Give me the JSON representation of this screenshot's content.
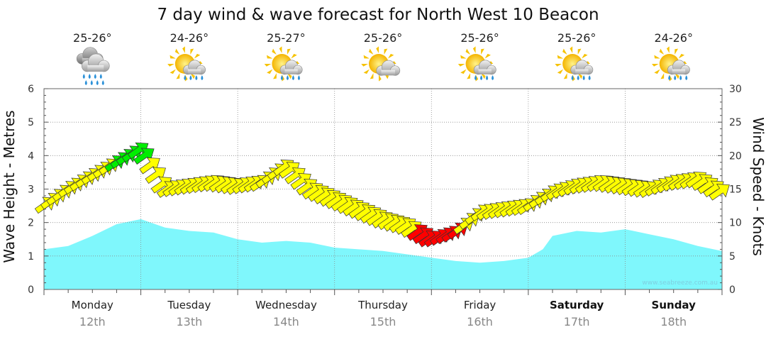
{
  "chart_data": {
    "type": "area",
    "title": "7 day wind & wave forecast for North West 10 Beacon",
    "ylabel_left": "Wave Height - Metres",
    "ylabel_right": "Wind Speed - Knots",
    "ylim_left": [
      0,
      6
    ],
    "ylim_right": [
      0,
      30
    ],
    "yticks_left": [
      "0",
      "1",
      "2",
      "3",
      "4",
      "5",
      "6"
    ],
    "yticks_right": [
      "0",
      "5",
      "10",
      "15",
      "20",
      "25",
      "30"
    ],
    "x_range_days": [
      0,
      7
    ],
    "grid": true,
    "watermark": "www.seabreeze.com.au",
    "days": [
      {
        "label": "Monday",
        "date": "12th",
        "bold": false,
        "temp": "25-26°",
        "weather_icon": "rain-cloud-icon"
      },
      {
        "label": "Tuesday",
        "date": "13th",
        "bold": false,
        "temp": "24-26°",
        "weather_icon": "sun-cloud-rain-icon"
      },
      {
        "label": "Wednesday",
        "date": "14th",
        "bold": false,
        "temp": "25-27°",
        "weather_icon": "sun-cloud-rain-icon"
      },
      {
        "label": "Thursday",
        "date": "15th",
        "bold": false,
        "temp": "25-26°",
        "weather_icon": "sun-cloud-icon"
      },
      {
        "label": "Friday",
        "date": "16th",
        "bold": false,
        "temp": "25-26°",
        "weather_icon": "sun-cloud-rain-icon"
      },
      {
        "label": "Saturday",
        "date": "17th",
        "bold": true,
        "temp": "25-26°",
        "weather_icon": "sun-cloud-rain-icon"
      },
      {
        "label": "Sunday",
        "date": "18th",
        "bold": true,
        "temp": "24-26°",
        "weather_icon": "sun-cloud-rain-icon"
      }
    ],
    "wave_height": {
      "name": "Wave Height",
      "x": [
        0,
        0.25,
        0.5,
        0.75,
        1.0,
        1.25,
        1.5,
        1.75,
        2.0,
        2.25,
        2.5,
        2.75,
        3.0,
        3.5,
        4.0,
        4.25,
        4.5,
        4.75,
        5.0,
        5.15,
        5.25,
        5.5,
        5.75,
        6.0,
        6.25,
        6.5,
        6.75,
        7.0
      ],
      "values": [
        1.2,
        1.3,
        1.6,
        1.95,
        2.1,
        1.85,
        1.75,
        1.7,
        1.5,
        1.4,
        1.45,
        1.4,
        1.25,
        1.15,
        0.95,
        0.85,
        0.8,
        0.85,
        0.95,
        1.2,
        1.6,
        1.75,
        1.7,
        1.8,
        1.65,
        1.5,
        1.3,
        1.15
      ],
      "color": "#7ff7fc"
    },
    "wind_speed": {
      "name": "Wind Speed",
      "x": [
        0,
        0.25,
        0.5,
        0.75,
        1.0,
        1.25,
        1.5,
        1.75,
        2.0,
        2.25,
        2.5,
        2.75,
        3.0,
        3.25,
        3.5,
        3.75,
        4.0,
        4.25,
        4.5,
        4.75,
        5.0,
        5.25,
        5.5,
        5.75,
        6.0,
        6.25,
        6.5,
        6.75,
        7.0
      ],
      "values": [
        12.5,
        15,
        17,
        19,
        21,
        15,
        15.5,
        16,
        15.5,
        16,
        18.5,
        15,
        13.5,
        12,
        10.5,
        9.5,
        7.5,
        8.5,
        11.5,
        12,
        12.5,
        14.5,
        15.5,
        16,
        15.5,
        15,
        16,
        16.5,
        14.5
      ],
      "direction": "NW",
      "colors": {
        "light": "#00ee00",
        "moderate": "#ffff00",
        "strong": "#ff0000"
      },
      "speed_color_bands": [
        {
          "max_knots": 8.9,
          "color": "#ff0000"
        },
        {
          "max_knots": 18.9,
          "color": "#ffff00"
        },
        {
          "max_knots": 30,
          "color": "#00ee00"
        }
      ]
    }
  }
}
